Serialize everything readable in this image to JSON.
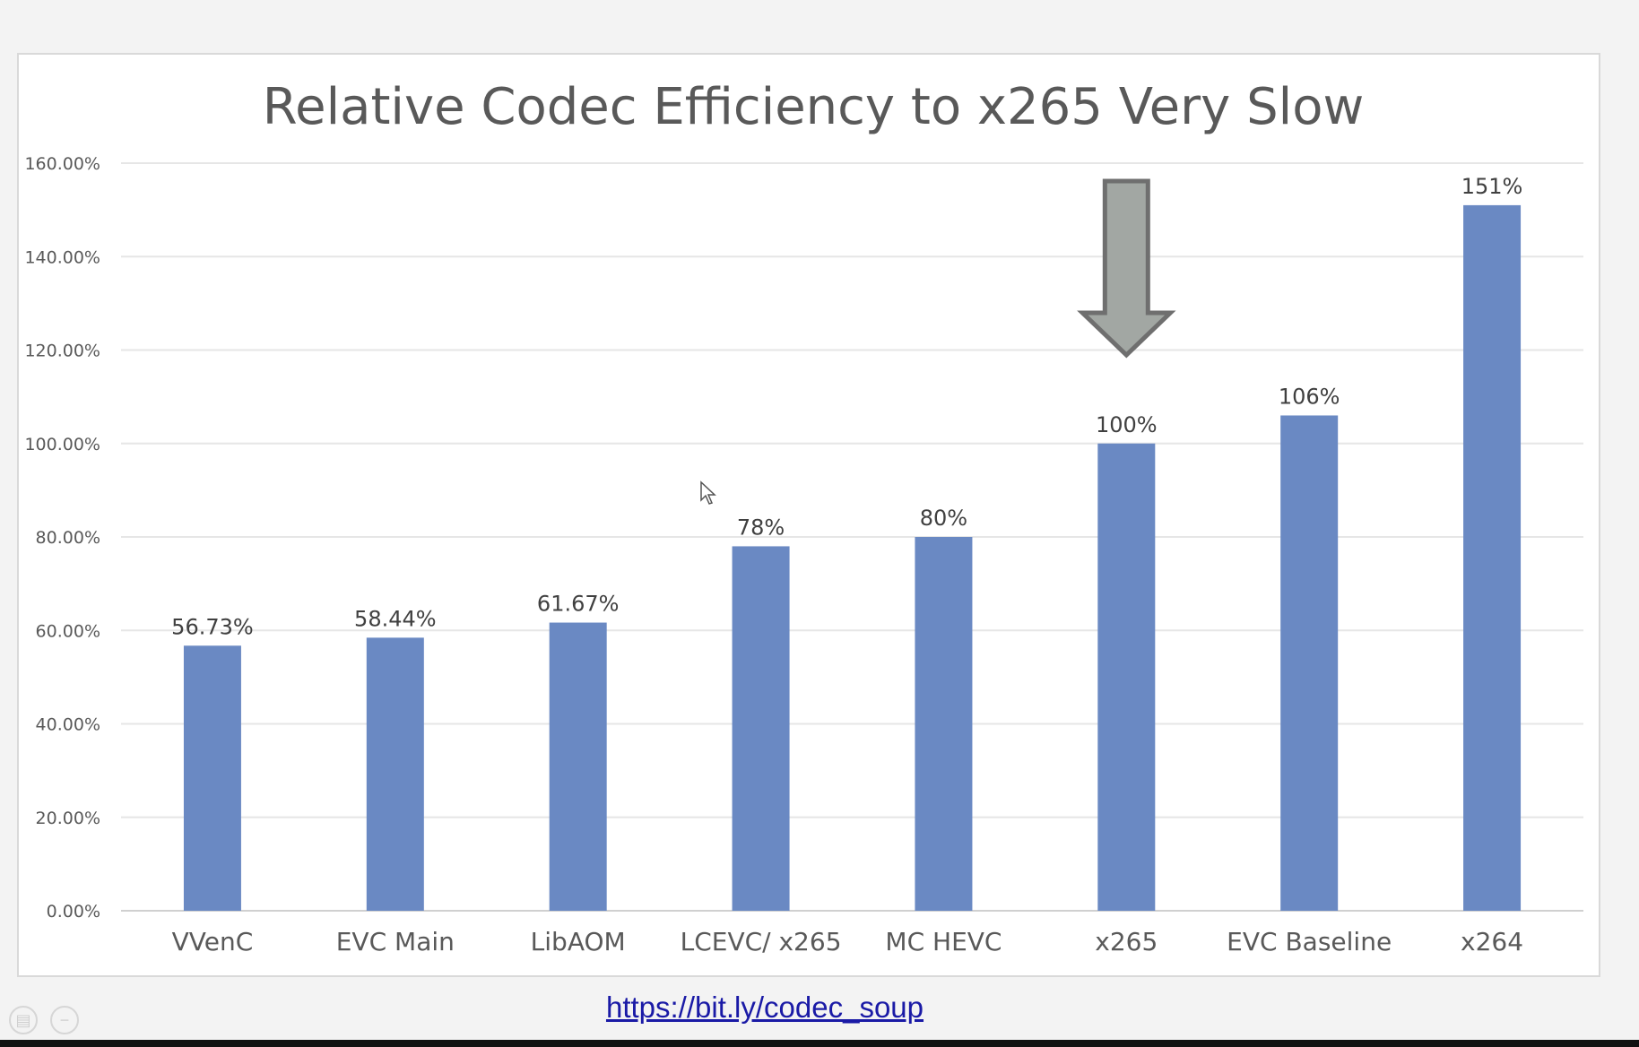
{
  "slide": {
    "link_text": "https://bit.ly/codec_soup"
  },
  "chart_data": {
    "type": "bar",
    "title": "Relative Codec Efficiency to x265 Very Slow",
    "categories": [
      "VVenC",
      "EVC Main",
      "LibAOM",
      "LCEVC/ x265",
      "MC HEVC",
      "x265",
      "EVC Baseline",
      "x264"
    ],
    "values": [
      56.73,
      58.44,
      61.67,
      78,
      80,
      100,
      106,
      151
    ],
    "data_labels": [
      "56.73%",
      "58.44%",
      "61.67%",
      "78%",
      "80%",
      "100%",
      "106%",
      "151%"
    ],
    "ylim": [
      0,
      160
    ],
    "yticks": [
      0,
      20,
      40,
      60,
      80,
      100,
      120,
      140,
      160
    ],
    "ytick_labels": [
      "0.00%",
      "20.00%",
      "40.00%",
      "60.00%",
      "80.00%",
      "100.00%",
      "120.00%",
      "140.00%",
      "160.00%"
    ],
    "xlabel": "",
    "ylabel": "",
    "grid": true,
    "legend": "none",
    "bar_color": "#6a89c3",
    "highlight_arrow_category": "x265",
    "arrow_color": "#a2a7a3"
  }
}
